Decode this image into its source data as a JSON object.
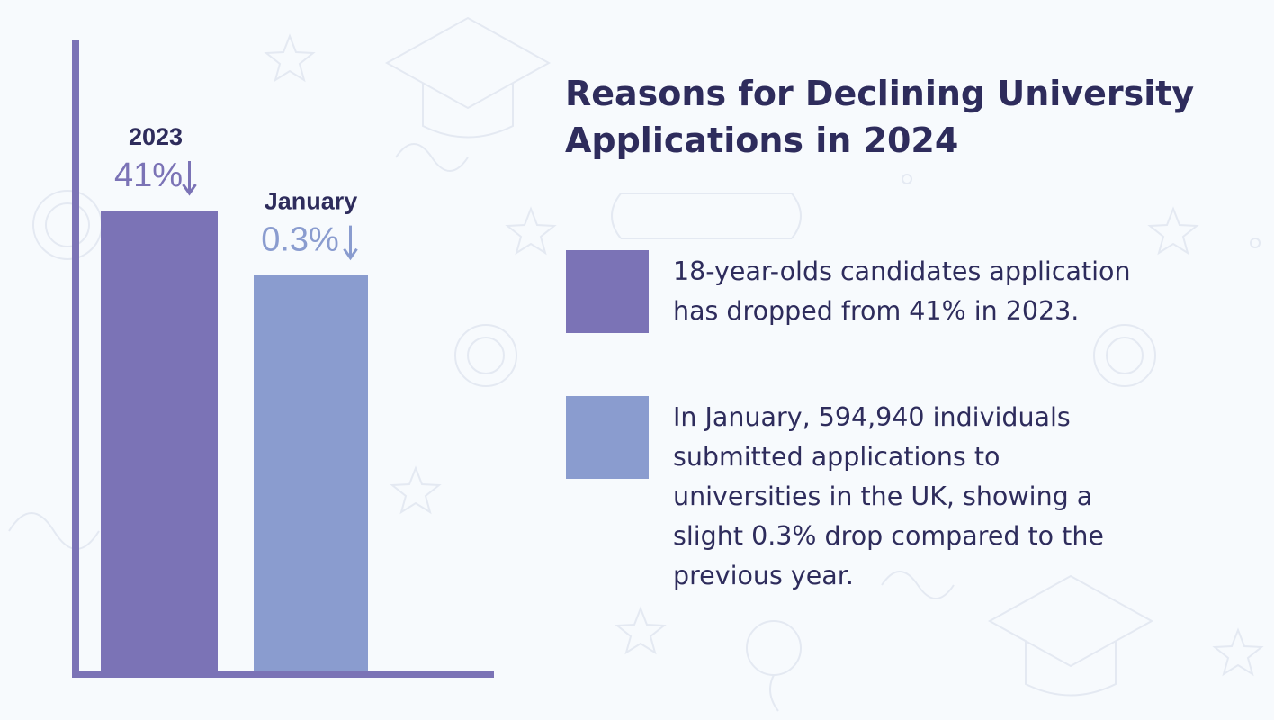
{
  "colors": {
    "series_2023": "#7b73b6",
    "series_january": "#8a9ccf",
    "axis": "#7b73b6",
    "title_text": "#2e2c5c",
    "body_text": "#2e2c5c"
  },
  "header": {
    "title_line1": "Reasons for Declining University",
    "title_line2": "Applications in 2024"
  },
  "legend": [
    {
      "color": "#7b73b6",
      "lines": [
        "18-year-olds candidates application",
        "has dropped from 41% in 2023."
      ]
    },
    {
      "color": "#8a9ccf",
      "lines": [
        "In January, 594,940 individuals",
        "submitted applications to",
        "universities in the UK, showing a",
        "slight 0.3% drop compared to the",
        "previous year."
      ]
    }
  ],
  "chart_data": {
    "type": "bar",
    "title": "Reasons for Declining University Applications in 2024",
    "categories": [
      "2023",
      "January"
    ],
    "value_labels": [
      "41%",
      "0.3%"
    ],
    "change_direction": [
      "down",
      "down"
    ],
    "relative_heights": [
      1.0,
      0.86
    ],
    "colors": [
      "#7b73b6",
      "#8a9ccf"
    ],
    "xlabel": "",
    "ylabel": "",
    "grid": false,
    "legend": "right"
  }
}
